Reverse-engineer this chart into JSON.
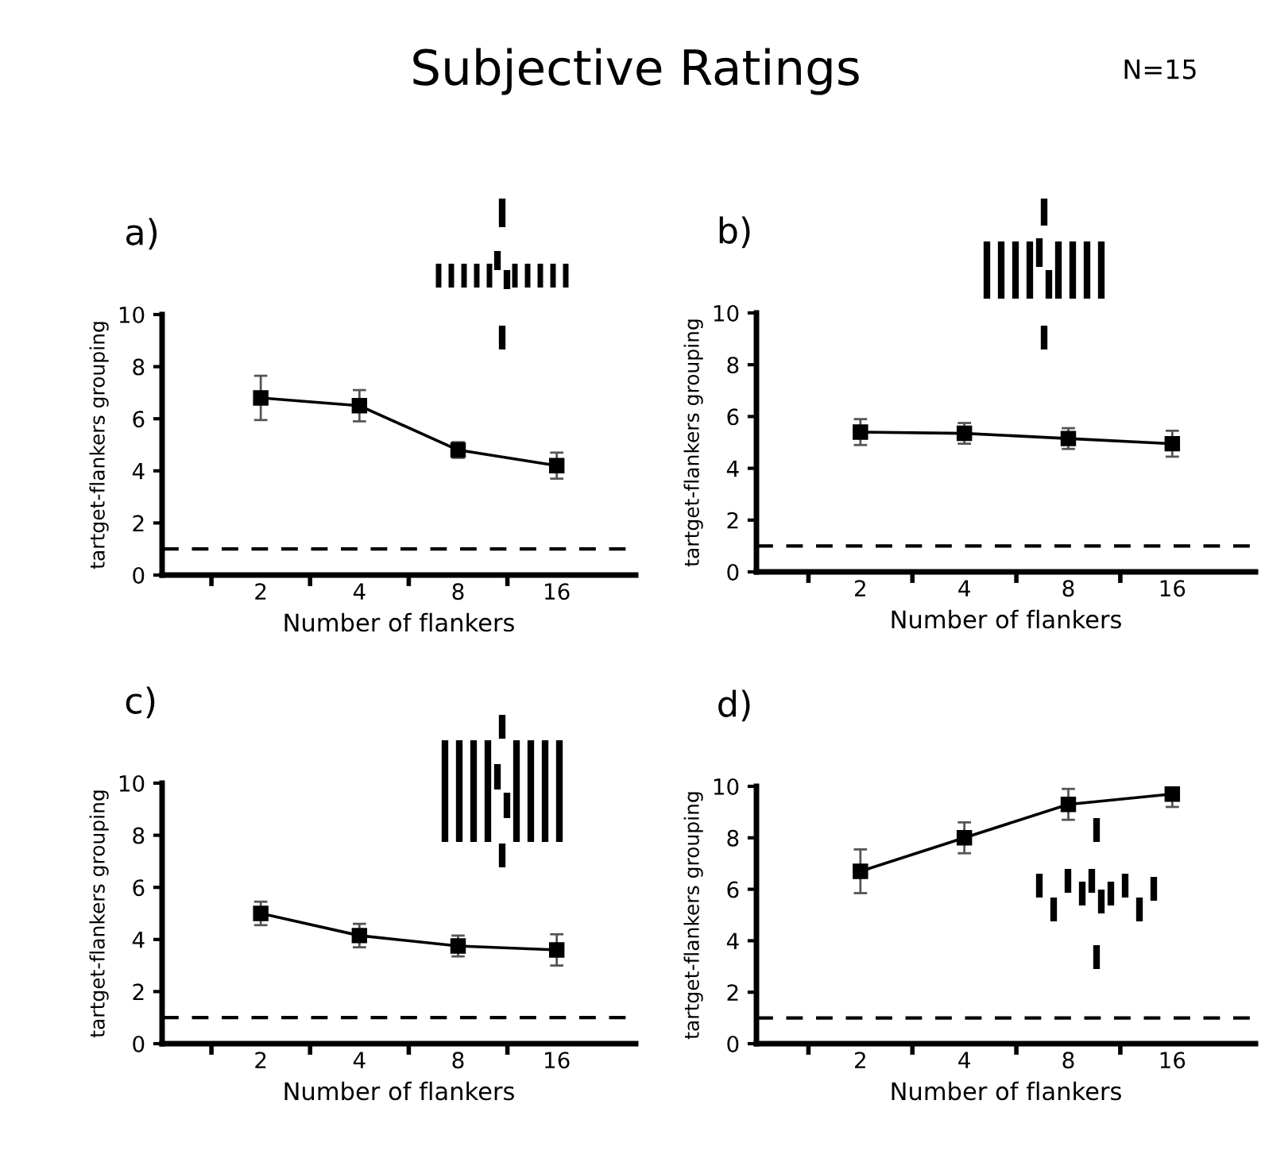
{
  "chart_data": [
    {
      "type": "line",
      "title": "a)",
      "annotations": [
        "Subjective Ratings",
        "N=15"
      ],
      "xlabel": "Number of flankers",
      "ylabel": "tartget-flankers grouping",
      "categories": [
        "2",
        "4",
        "8",
        "16"
      ],
      "series": [
        {
          "color": "#000000",
          "values": [
            6.8,
            6.5,
            4.8,
            4.2
          ],
          "errors": [
            0.85,
            0.6,
            0.3,
            0.5
          ]
        }
      ],
      "ylim": [
        0,
        10
      ],
      "yticks": [
        0,
        2,
        4,
        6,
        8,
        10
      ],
      "marker": "square",
      "line_style": "solid",
      "grid": false,
      "legend": false,
      "ref_lines": [
        {
          "axis": "y",
          "value": 1,
          "line_style": "dashed",
          "color": "#000000"
        }
      ]
    },
    {
      "type": "line",
      "title": "b)",
      "xlabel": "Number of flankers",
      "ylabel": "tartget-flankers grouping",
      "categories": [
        "2",
        "4",
        "8",
        "16"
      ],
      "series": [
        {
          "color": "#000000",
          "values": [
            5.4,
            5.35,
            5.15,
            4.95
          ],
          "errors": [
            0.5,
            0.4,
            0.4,
            0.5
          ]
        }
      ],
      "ylim": [
        0,
        10
      ],
      "yticks": [
        0,
        2,
        4,
        6,
        8,
        10
      ],
      "marker": "square",
      "line_style": "solid",
      "grid": false,
      "legend": false,
      "ref_lines": [
        {
          "axis": "y",
          "value": 1,
          "line_style": "dashed",
          "color": "#000000"
        }
      ]
    },
    {
      "type": "line",
      "title": "c)",
      "xlabel": "Number of flankers",
      "ylabel": "tartget-flankers grouping",
      "categories": [
        "2",
        "4",
        "8",
        "16"
      ],
      "series": [
        {
          "color": "#000000",
          "values": [
            5.0,
            4.15,
            3.75,
            3.6
          ],
          "errors": [
            0.45,
            0.45,
            0.4,
            0.6
          ]
        }
      ],
      "ylim": [
        0,
        10
      ],
      "yticks": [
        0,
        2,
        4,
        6,
        8,
        10
      ],
      "marker": "square",
      "line_style": "solid",
      "grid": false,
      "legend": false,
      "ref_lines": [
        {
          "axis": "y",
          "value": 1,
          "line_style": "dashed",
          "color": "#000000"
        }
      ]
    },
    {
      "type": "line",
      "title": "d)",
      "xlabel": "Number of flankers",
      "ylabel": "tartget-flankers grouping",
      "categories": [
        "2",
        "4",
        "8",
        "16"
      ],
      "series": [
        {
          "color": "#000000",
          "values": [
            6.7,
            8.0,
            9.3,
            9.7
          ],
          "errors": [
            0.85,
            0.6,
            0.6,
            0.5
          ]
        }
      ],
      "ylim": [
        0,
        10
      ],
      "yticks": [
        0,
        2,
        4,
        6,
        8,
        10
      ],
      "marker": "square",
      "line_style": "solid",
      "grid": false,
      "legend": false,
      "ref_lines": [
        {
          "axis": "y",
          "value": 1,
          "line_style": "dashed",
          "color": "#000000"
        }
      ]
    }
  ]
}
